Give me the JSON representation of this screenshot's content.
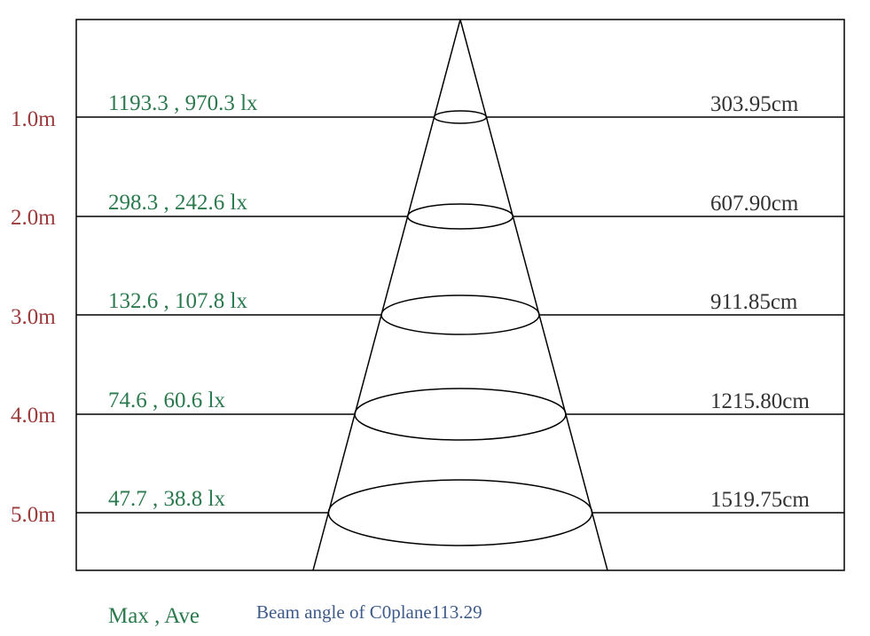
{
  "rows": [
    {
      "distance": "1.0m",
      "lux": "1193.3 , 970.3 lx",
      "diameter": "303.95cm"
    },
    {
      "distance": "2.0m",
      "lux": "298.3 , 242.6 lx",
      "diameter": "607.90cm"
    },
    {
      "distance": "3.0m",
      "lux": "132.6 , 107.8 lx",
      "diameter": "911.85cm"
    },
    {
      "distance": "4.0m",
      "lux": "74.6 , 60.6 lx",
      "diameter": "1215.80cm"
    },
    {
      "distance": "5.0m",
      "lux": "47.7 , 38.8 lx",
      "diameter": "1519.75cm"
    }
  ],
  "legend": "Max , Ave",
  "beam_angle": "Beam angle of C0plane113.29",
  "colors": {
    "distance": "#9b3a3a",
    "lux": "#2a7a4e",
    "diameter": "#333333",
    "beam": "#3d5a8a",
    "line": "#000000"
  }
}
